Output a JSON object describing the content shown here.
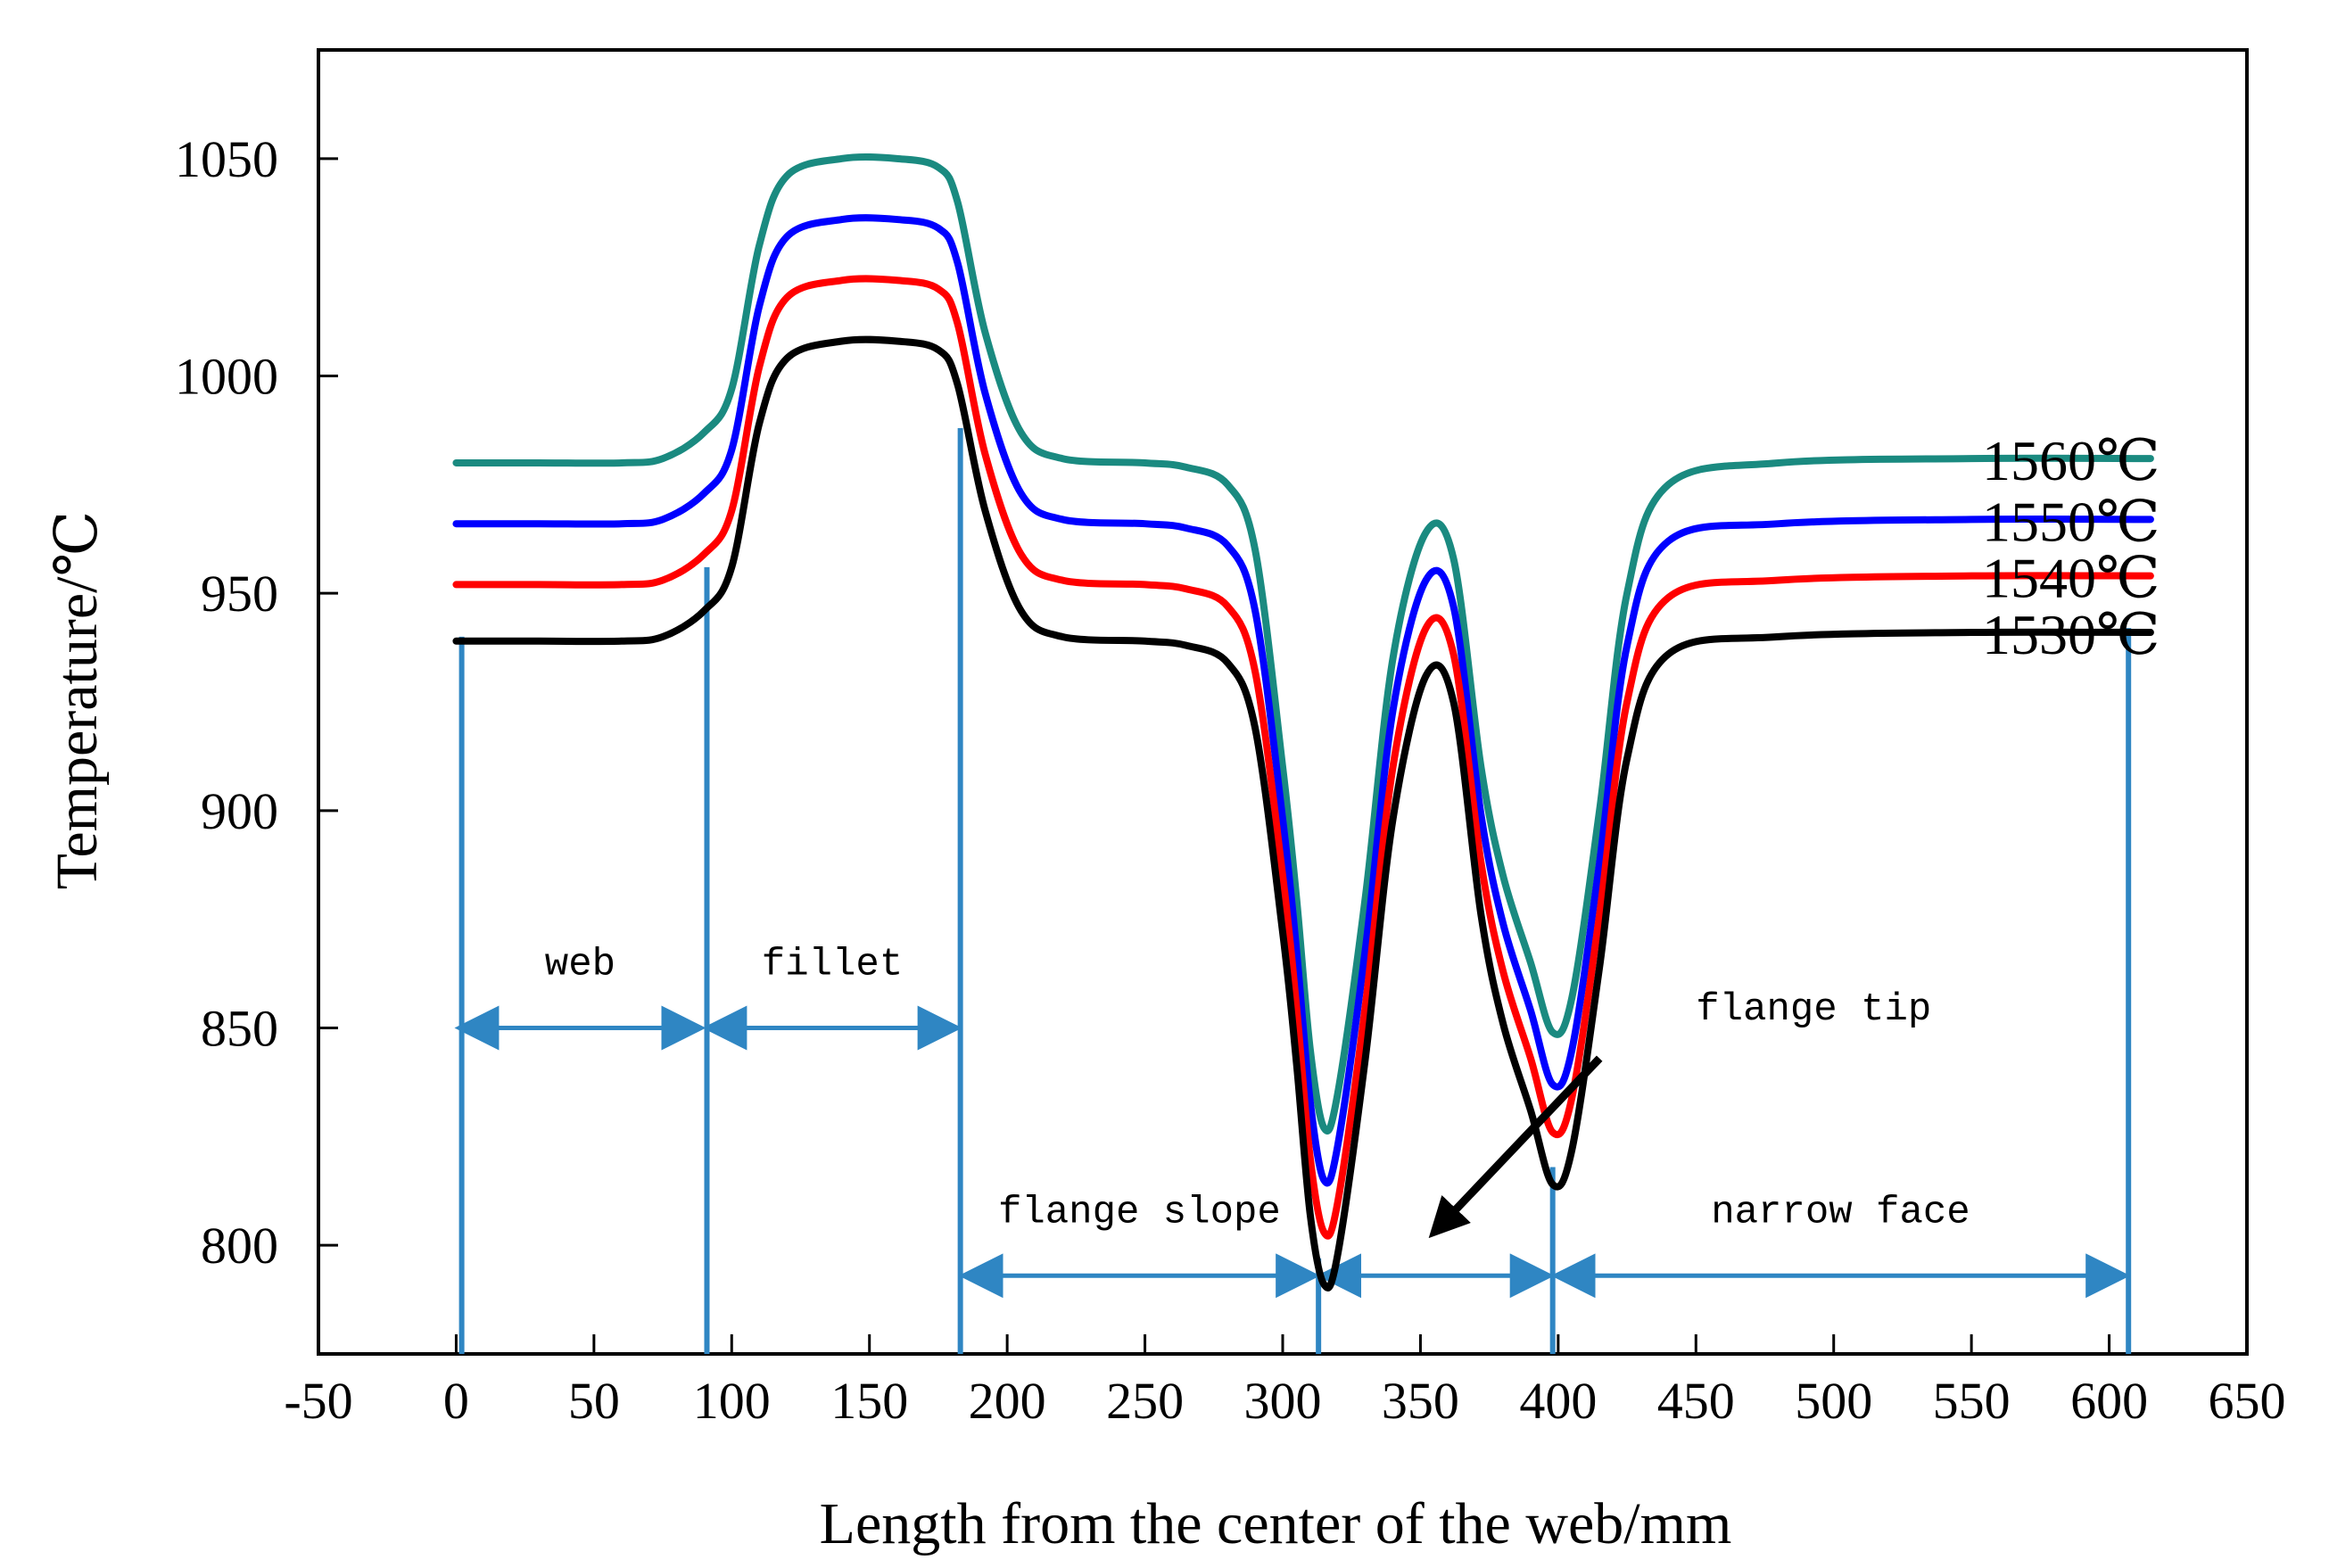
{
  "chart_data": {
    "type": "line",
    "title": "",
    "xlabel": "Length from the center of the web/mm",
    "ylabel": "Temperature/℃",
    "xlim": [
      -50,
      650
    ],
    "ylim": [
      775,
      1075
    ],
    "xticks": [
      -50,
      0,
      50,
      100,
      150,
      200,
      250,
      300,
      350,
      400,
      450,
      500,
      550,
      600,
      650
    ],
    "yticks": [
      800,
      850,
      900,
      950,
      1000,
      1050
    ],
    "grid": false,
    "legend": "inline labels at right end of each curve",
    "series": [
      {
        "name": "1560℃",
        "color": "#1a8a80",
        "points": [
          [
            0,
            980
          ],
          [
            30,
            980
          ],
          [
            60,
            980
          ],
          [
            75,
            981
          ],
          [
            90,
            987
          ],
          [
            100,
            997
          ],
          [
            110,
            1030
          ],
          [
            120,
            1046
          ],
          [
            140,
            1050
          ],
          [
            160,
            1050
          ],
          [
            175,
            1048
          ],
          [
            182,
            1040
          ],
          [
            192,
            1010
          ],
          [
            205,
            987
          ],
          [
            220,
            981
          ],
          [
            250,
            980
          ],
          [
            265,
            979
          ],
          [
            280,
            975
          ],
          [
            290,
            960
          ],
          [
            300,
            910
          ],
          [
            305,
            880
          ],
          [
            310,
            845
          ],
          [
            315,
            827
          ],
          [
            320,
            835
          ],
          [
            330,
            880
          ],
          [
            340,
            935
          ],
          [
            352,
            964
          ],
          [
            362,
            958
          ],
          [
            372,
            910
          ],
          [
            380,
            885
          ],
          [
            390,
            865
          ],
          [
            398,
            849
          ],
          [
            405,
            857
          ],
          [
            415,
            900
          ],
          [
            425,
            950
          ],
          [
            440,
            975
          ],
          [
            480,
            980
          ],
          [
            550,
            981
          ],
          [
            615,
            981
          ]
        ]
      },
      {
        "name": "1550℃",
        "color": "#0000ff",
        "points": [
          [
            0,
            966
          ],
          [
            30,
            966
          ],
          [
            60,
            966
          ],
          [
            75,
            967
          ],
          [
            90,
            973
          ],
          [
            100,
            983
          ],
          [
            110,
            1016
          ],
          [
            120,
            1032
          ],
          [
            140,
            1036
          ],
          [
            160,
            1036
          ],
          [
            175,
            1034
          ],
          [
            182,
            1026
          ],
          [
            192,
            996
          ],
          [
            205,
            973
          ],
          [
            220,
            967
          ],
          [
            250,
            966
          ],
          [
            265,
            965
          ],
          [
            280,
            961
          ],
          [
            290,
            946
          ],
          [
            300,
            898
          ],
          [
            305,
            868
          ],
          [
            310,
            833
          ],
          [
            315,
            815
          ],
          [
            320,
            823
          ],
          [
            330,
            868
          ],
          [
            340,
            923
          ],
          [
            352,
            953
          ],
          [
            362,
            947
          ],
          [
            372,
            899
          ],
          [
            380,
            874
          ],
          [
            390,
            854
          ],
          [
            398,
            837
          ],
          [
            405,
            845
          ],
          [
            415,
            888
          ],
          [
            425,
            938
          ],
          [
            440,
            962
          ],
          [
            480,
            966
          ],
          [
            550,
            967
          ],
          [
            615,
            967
          ]
        ]
      },
      {
        "name": "1540℃",
        "color": "#ff0000",
        "points": [
          [
            0,
            952
          ],
          [
            30,
            952
          ],
          [
            60,
            952
          ],
          [
            75,
            953
          ],
          [
            90,
            959
          ],
          [
            100,
            969
          ],
          [
            110,
            1002
          ],
          [
            120,
            1018
          ],
          [
            140,
            1022
          ],
          [
            160,
            1022
          ],
          [
            175,
            1020
          ],
          [
            182,
            1012
          ],
          [
            192,
            982
          ],
          [
            205,
            959
          ],
          [
            220,
            953
          ],
          [
            250,
            952
          ],
          [
            265,
            951
          ],
          [
            280,
            947
          ],
          [
            290,
            932
          ],
          [
            300,
            885
          ],
          [
            305,
            855
          ],
          [
            310,
            820
          ],
          [
            315,
            803
          ],
          [
            320,
            810
          ],
          [
            330,
            855
          ],
          [
            340,
            910
          ],
          [
            352,
            942
          ],
          [
            362,
            936
          ],
          [
            372,
            888
          ],
          [
            380,
            863
          ],
          [
            390,
            843
          ],
          [
            398,
            826
          ],
          [
            405,
            834
          ],
          [
            415,
            876
          ],
          [
            425,
            925
          ],
          [
            440,
            949
          ],
          [
            480,
            953
          ],
          [
            550,
            954
          ],
          [
            615,
            954
          ]
        ]
      },
      {
        "name": "1530℃",
        "color": "#000000",
        "points": [
          [
            0,
            939
          ],
          [
            30,
            939
          ],
          [
            60,
            939
          ],
          [
            75,
            940
          ],
          [
            90,
            946
          ],
          [
            100,
            956
          ],
          [
            110,
            989
          ],
          [
            120,
            1004
          ],
          [
            140,
            1008
          ],
          [
            160,
            1008
          ],
          [
            175,
            1006
          ],
          [
            182,
            998
          ],
          [
            192,
            969
          ],
          [
            205,
            946
          ],
          [
            220,
            940
          ],
          [
            250,
            939
          ],
          [
            265,
            938
          ],
          [
            280,
            934
          ],
          [
            290,
            919
          ],
          [
            300,
            872
          ],
          [
            305,
            842
          ],
          [
            310,
            807
          ],
          [
            315,
            791
          ],
          [
            320,
            798
          ],
          [
            330,
            843
          ],
          [
            340,
            898
          ],
          [
            352,
            931
          ],
          [
            362,
            925
          ],
          [
            372,
            876
          ],
          [
            380,
            851
          ],
          [
            390,
            831
          ],
          [
            398,
            814
          ],
          [
            405,
            822
          ],
          [
            415,
            864
          ],
          [
            425,
            912
          ],
          [
            440,
            936
          ],
          [
            480,
            940
          ],
          [
            550,
            941
          ],
          [
            615,
            941
          ]
        ]
      }
    ],
    "regions": [
      {
        "label": "web",
        "from": 0,
        "to": 90,
        "arrow_y": 850
      },
      {
        "label": "fillet",
        "from": 90,
        "to": 183,
        "arrow_y": 850
      },
      {
        "label": "flange slope",
        "from": 183,
        "to": 313,
        "arrow_y": 793
      },
      {
        "label": "",
        "from": 313,
        "to": 398,
        "arrow_y": 793
      },
      {
        "label": "narrow face",
        "from": 398,
        "to": 607,
        "arrow_y": 793
      }
    ],
    "boundaries": [
      {
        "x": 2,
        "y_top": 940
      },
      {
        "x": 91,
        "y_top": 956
      },
      {
        "x": 183,
        "y_top": 988
      },
      {
        "x": 313,
        "y_top": 797
      },
      {
        "x": 398,
        "y_top": 818
      },
      {
        "x": 607,
        "y_top": 942
      }
    ],
    "annotation": {
      "label": "flange tip",
      "text_at": [
        450,
        852
      ],
      "arrow_from": [
        415,
        843
      ],
      "arrow_to": [
        355,
        803
      ]
    }
  }
}
